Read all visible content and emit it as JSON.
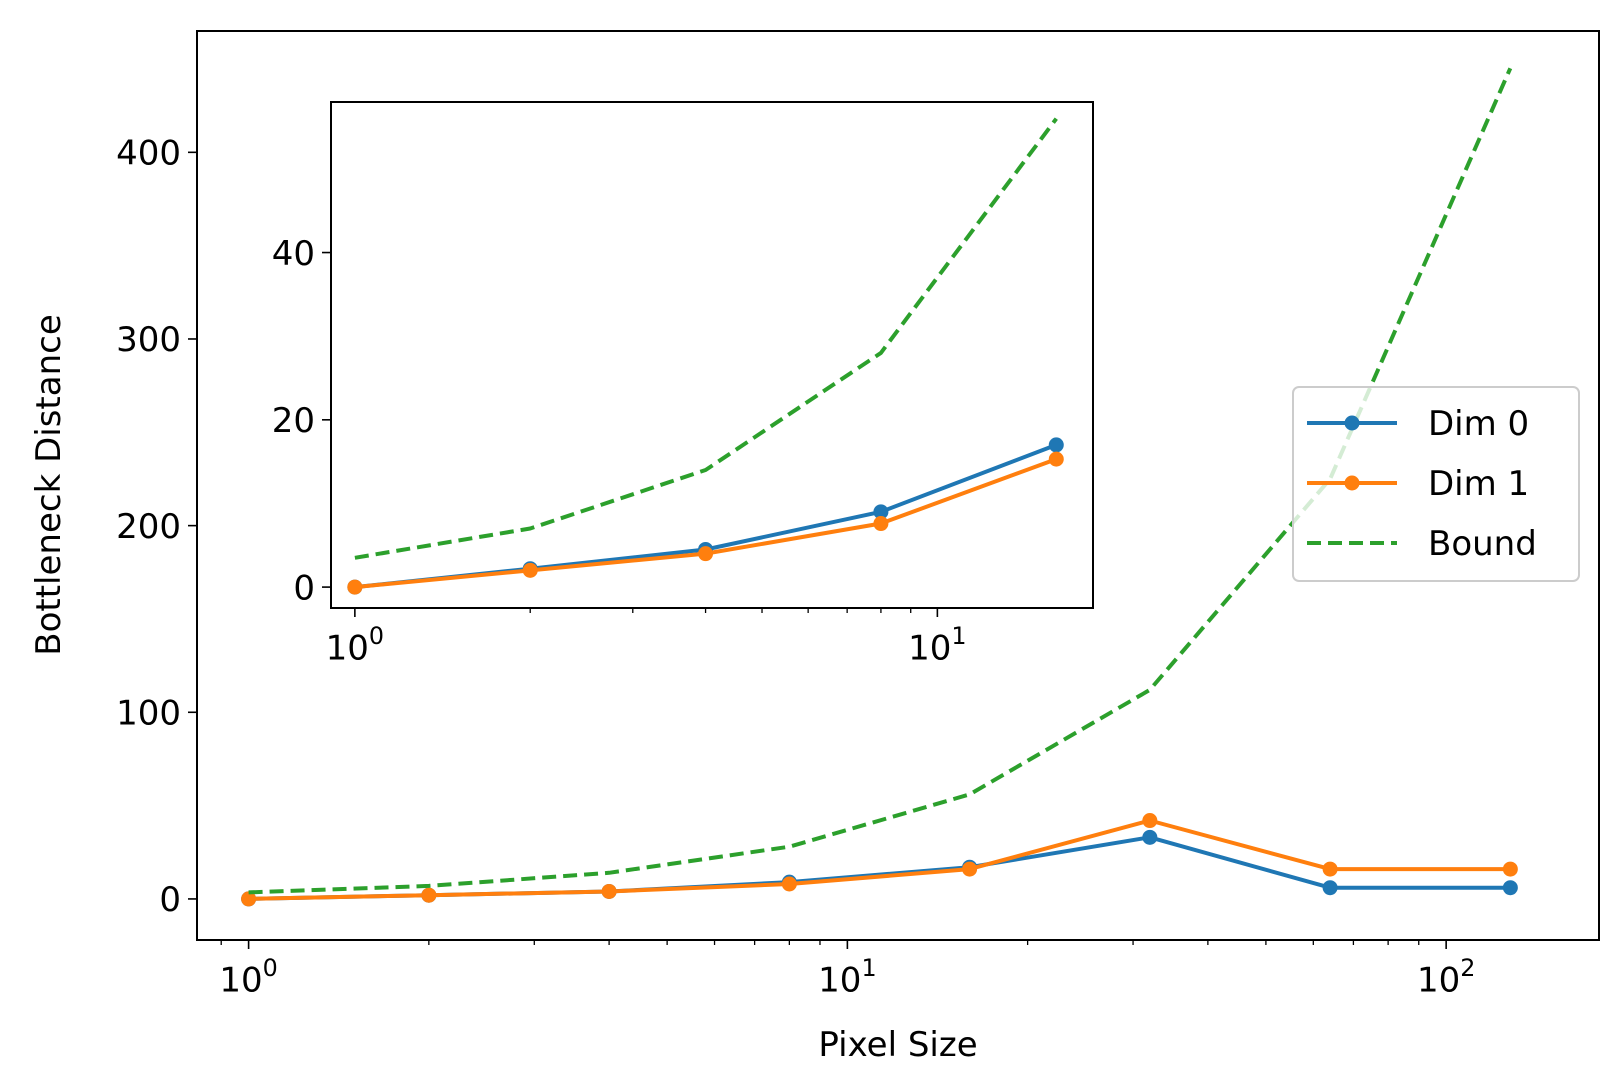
{
  "chart_data": [
    {
      "id": "main",
      "type": "line",
      "xlabel": "Pixel Size",
      "ylabel": "Bottleneck Distance",
      "xscale": "log",
      "xlim": [
        0.82,
        180
      ],
      "ylim": [
        -22,
        465
      ],
      "x_ticks": [
        {
          "value": 1,
          "base": "10",
          "exp": "0"
        },
        {
          "value": 10,
          "base": "10",
          "exp": "1"
        },
        {
          "value": 100,
          "base": "10",
          "exp": "2"
        }
      ],
      "y_ticks": [
        0,
        100,
        200,
        300,
        400
      ],
      "legend_position": "center-right",
      "series": [
        {
          "name": "Dim 0",
          "color": "#1f77b4",
          "style": "solid-marker",
          "x": [
            1,
            2,
            4,
            8,
            16,
            32,
            64,
            128
          ],
          "y": [
            0,
            2,
            4,
            9,
            17,
            33,
            6,
            6
          ]
        },
        {
          "name": "Dim 1",
          "color": "#ff7f0e",
          "style": "solid-marker",
          "x": [
            1,
            2,
            4,
            8,
            16,
            32,
            64,
            128
          ],
          "y": [
            0,
            2,
            4,
            8,
            16,
            42,
            16,
            16
          ]
        },
        {
          "name": "Bound",
          "color": "#2ca02c",
          "style": "dashed",
          "x": [
            1,
            2,
            4,
            8,
            16,
            32,
            64,
            128
          ],
          "y": [
            3.5,
            7,
            14,
            28,
            56,
            112,
            225,
            445
          ]
        }
      ]
    },
    {
      "id": "inset",
      "type": "line",
      "xscale": "log",
      "xlim": [
        0.91,
        18.5
      ],
      "ylim": [
        -2.5,
        58
      ],
      "x_ticks": [
        {
          "value": 1,
          "base": "10",
          "exp": "0"
        },
        {
          "value": 10,
          "base": "10",
          "exp": "1"
        }
      ],
      "y_ticks": [
        0,
        20,
        40
      ],
      "series": [
        {
          "color": "#1f77b4",
          "style": "solid-marker",
          "x": [
            1,
            2,
            4,
            8,
            16
          ],
          "y": [
            0,
            2.2,
            4.5,
            9,
            17
          ]
        },
        {
          "color": "#ff7f0e",
          "style": "solid-marker",
          "x": [
            1,
            2,
            4,
            8,
            16
          ],
          "y": [
            0,
            2,
            4,
            7.6,
            15.3
          ]
        },
        {
          "color": "#2ca02c",
          "style": "dashed",
          "x": [
            1,
            2,
            4,
            8,
            16
          ],
          "y": [
            3.5,
            7,
            14,
            28,
            56
          ]
        }
      ]
    }
  ]
}
